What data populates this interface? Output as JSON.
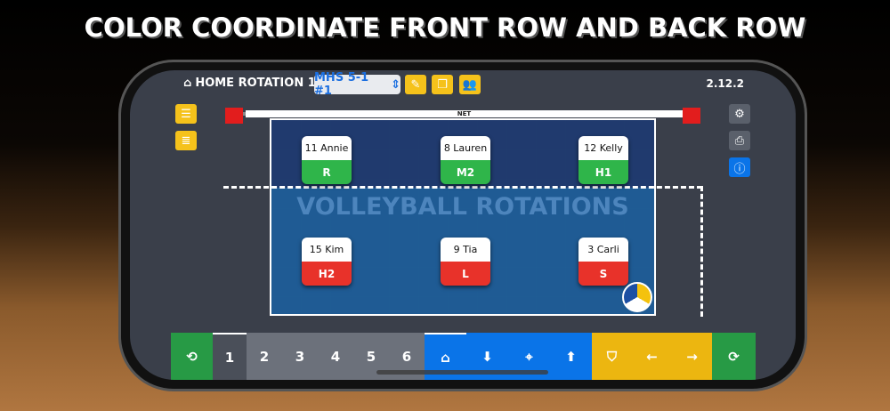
{
  "headline": "COLOR COORDINATE FRONT ROW AND BACK ROW",
  "header": {
    "title": "HOME ROTATION 1 –",
    "home_icon": "home-icon",
    "lineup_select": "MHS 5-1 #1",
    "version": "2.12.2"
  },
  "net_label": "NET",
  "watermark": "VOLLEYBALL ROTATIONS",
  "colors": {
    "front_role": "#2fb54a",
    "back_role": "#e8322a",
    "blue": "#0a74e8",
    "yellow": "#ecb610",
    "green": "#279a45"
  },
  "players": [
    {
      "name": "11 Annie",
      "role": "R",
      "row": "front"
    },
    {
      "name": "8 Lauren",
      "role": "M2",
      "row": "front"
    },
    {
      "name": "12 Kelly",
      "role": "H1",
      "row": "front"
    },
    {
      "name": "15 Kim",
      "role": "H2",
      "row": "back"
    },
    {
      "name": "9 Tia",
      "role": "L",
      "row": "back"
    },
    {
      "name": "3 Carli",
      "role": "S",
      "row": "back"
    }
  ],
  "rotations": [
    "1",
    "2",
    "3",
    "4",
    "5",
    "6"
  ],
  "selected_rotation": "1"
}
